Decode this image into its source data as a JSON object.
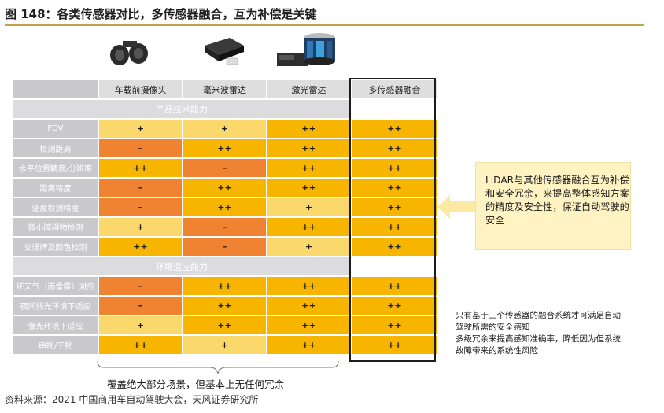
{
  "title": "图 148：各类传感器对比，多传感器融合，互为补偿是关键",
  "columns": [
    "车载前摄像头",
    "毫米波雷达",
    "激光雷达",
    "多传感器融合"
  ],
  "sections": [
    {
      "label": "产品技术能力",
      "rows": [
        {
          "label": "FOV",
          "values": [
            "+",
            "+",
            "++",
            "++"
          ],
          "colors": [
            "#fbd86b",
            "#fbd86b",
            "#f7b500",
            "#f7b500"
          ]
        },
        {
          "label": "检测距离",
          "values": [
            "–",
            "++",
            "++",
            "++"
          ],
          "colors": [
            "#ef8332",
            "#f7b500",
            "#f7b500",
            "#f7b500"
          ]
        },
        {
          "label": "水平位置精度/分辨率",
          "values": [
            "++",
            "–",
            "++",
            "++"
          ],
          "colors": [
            "#f7b500",
            "#ef8332",
            "#f7b500",
            "#f7b500"
          ]
        },
        {
          "label": "距离精度",
          "values": [
            "–",
            "++",
            "++",
            "++"
          ],
          "colors": [
            "#ef8332",
            "#f7b500",
            "#f7b500",
            "#f7b500"
          ]
        },
        {
          "label": "速度检测精度",
          "values": [
            "–",
            "++",
            "+",
            "++"
          ],
          "colors": [
            "#ef8332",
            "#f7b500",
            "#fbd86b",
            "#f7b500"
          ]
        },
        {
          "label": "微小障碍物检测",
          "values": [
            "+",
            "–",
            "++",
            "++"
          ],
          "colors": [
            "#fbd86b",
            "#ef8332",
            "#f7b500",
            "#f7b500"
          ]
        },
        {
          "label": "交通牌及颜色检测",
          "values": [
            "++",
            "–",
            "+",
            "++"
          ],
          "colors": [
            "#f7b500",
            "#ef8332",
            "#fbd86b",
            "#f7b500"
          ]
        }
      ]
    },
    {
      "label": "环境适应能力",
      "rows": [
        {
          "label": "坏天气（雨雪雾）对应",
          "values": [
            "–",
            "++",
            "++",
            "++"
          ],
          "colors": [
            "#ef8332",
            "#f7b500",
            "#f7b500",
            "#f7b500"
          ]
        },
        {
          "label": "夜间弱光环境下适应",
          "values": [
            "–",
            "++",
            "++",
            "++"
          ],
          "colors": [
            "#ef8332",
            "#f7b500",
            "#f7b500",
            "#f7b500"
          ]
        },
        {
          "label": "强光环境下适应",
          "values": [
            "+",
            "++",
            "++",
            "++"
          ],
          "colors": [
            "#fbd86b",
            "#f7b500",
            "#f7b500",
            "#f7b500"
          ]
        },
        {
          "label": "串扰/干扰",
          "values": [
            "++",
            "+",
            "++",
            "++"
          ],
          "colors": [
            "#f7b500",
            "#fbd86b",
            "#f7b500",
            "#f7b500"
          ]
        }
      ]
    }
  ],
  "callout": "LiDAR与其他传感器融合互为补偿和安全冗余，来提高整体感知方案的精度及安全性，保证自动驾驶的安全",
  "note_lines": [
    "只有基于三个传感器的融合系统才可满足自动",
    "驾驶所需的安全感知",
    "多级冗余来提高感知准确率，降低因为但系统",
    "故障带来的系统性风险"
  ],
  "brace_text": "覆盖绝大部分场景，但基本上无任何冗余",
  "source": "资料来源：2021 中国商用车自动驾驶大会，天风证券研究所",
  "colors": {
    "orange": "#ef8332",
    "yellow_light": "#fbd86b",
    "amber": "#f7b500",
    "accent_line": "#c8a04a"
  }
}
